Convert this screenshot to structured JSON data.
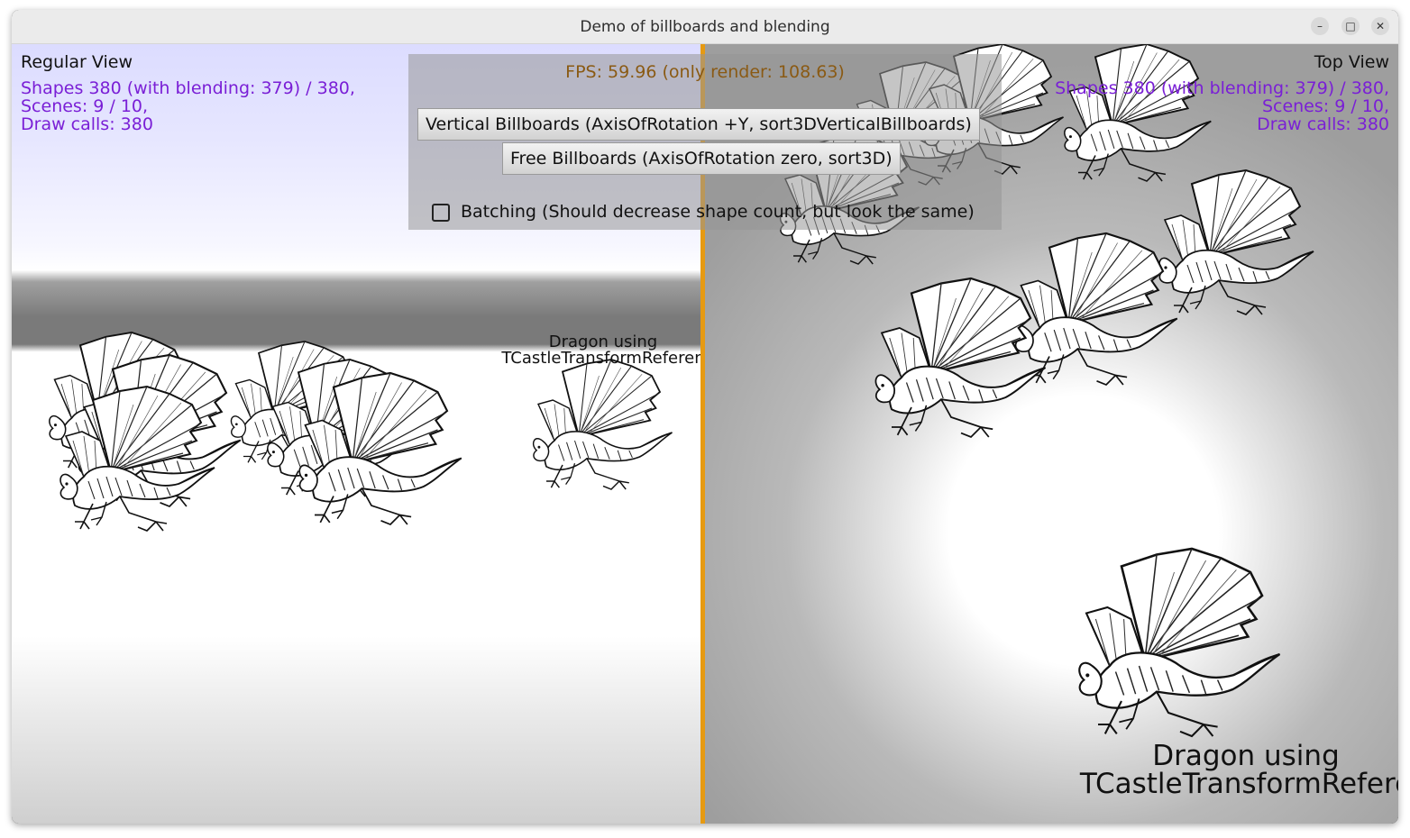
{
  "window": {
    "title": "Demo of billboards and blending",
    "controls": {
      "minimize": "–",
      "maximize": "□",
      "close": "✕"
    }
  },
  "left_view": {
    "label": "Regular View",
    "stats": [
      "Shapes 380 (with blending: 379) / 380,",
      "Scenes: 9 / 10,",
      "Draw calls: 380"
    ],
    "reference_label": [
      "Dragon using",
      "TCastleTransformReferen"
    ]
  },
  "right_view": {
    "label": "Top View",
    "stats": [
      "Shapes 380 (with blending: 379) / 380,",
      "Scenes: 9 / 10,",
      "Draw calls: 380"
    ],
    "reference_label": [
      "Dragon using",
      "TCastleTransformRefere"
    ]
  },
  "panel": {
    "fps": "FPS: 59.96 (only render: 108.63)",
    "vertical_button": "Vertical Billboards (AxisOfRotation +Y, sort3DVerticalBillboards)",
    "free_button": "Free Billboards (AxisOfRotation zero, sort3D)",
    "batching_label": "Batching (Should decrease shape count, but look the same)",
    "batching_checked": false
  },
  "colors": {
    "stats_text": "#7a1fd6",
    "fps_text": "#8a5a14",
    "divider": "#e69a12"
  },
  "icons": {
    "billboard_sprite": "dragon-icon"
  }
}
